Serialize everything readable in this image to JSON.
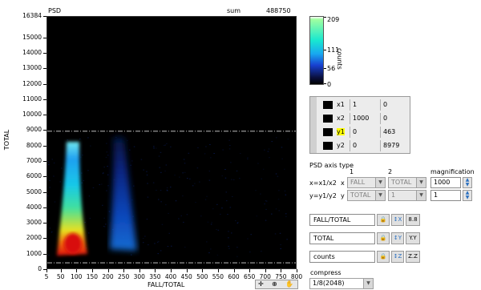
{
  "graph": {
    "title": "PSD",
    "sum_label": "sum",
    "sum_value": "488750",
    "ylabel": "TOTAL",
    "xlabel": "FALL/TOTAL",
    "x_ticks": [
      "5",
      "50",
      "100",
      "150",
      "200",
      "250",
      "300",
      "350",
      "400",
      "450",
      "500",
      "550",
      "600",
      "650",
      "700",
      "750",
      "800"
    ],
    "y_ticks": [
      "0",
      "1000",
      "2000",
      "3000",
      "4000",
      "5000",
      "6000",
      "7000",
      "8000",
      "9000",
      "10000",
      "11000",
      "12000",
      "13000",
      "14000",
      "15000",
      "16384"
    ]
  },
  "colorscale": {
    "label": "counts",
    "ticks": [
      "209",
      "111",
      "56",
      "0"
    ]
  },
  "cursors": [
    {
      "name": "x1",
      "x": "1",
      "y": "0"
    },
    {
      "name": "x2",
      "x": "1000",
      "y": "0"
    },
    {
      "name": "y1",
      "x": "0",
      "y": "463"
    },
    {
      "name": "y2",
      "x": "0",
      "y": "8979"
    }
  ],
  "psd_axis": {
    "title": "PSD axis type",
    "col1": "1",
    "col2": "2",
    "magnification_label": "magnification",
    "row_x": {
      "formula": "x=x1/x2",
      "axis": "x",
      "sel1": "FALL",
      "sel2": "TOTAL",
      "mag": "1000"
    },
    "row_y": {
      "formula": "y=y1/y2",
      "axis": "y",
      "sel1": "TOTAL",
      "sel2": "1",
      "mag": "1"
    }
  },
  "axis_names": {
    "x": "FALL/TOTAL",
    "y": "TOTAL",
    "z": "counts",
    "x_fmt": "8.8",
    "y_fmt": "Y.Y",
    "z_fmt": "Z.Z"
  },
  "compress": {
    "label": "compress",
    "value": "1/8(2048)"
  },
  "colors": {
    "plot_bg": "#000000",
    "accent_cursor": "#ffff00",
    "scale_top": "#ffffff",
    "scale_mid": "#14e0d0",
    "scale_low": "#1a3fd0"
  },
  "chart_data": {
    "type": "heatmap",
    "title": "PSD",
    "xlabel": "FALL/TOTAL",
    "ylabel": "TOTAL",
    "xlim": [
      5,
      800
    ],
    "ylim": [
      0,
      16384
    ],
    "z_range": [
      0,
      209
    ],
    "x_ticks": [
      5,
      50,
      100,
      150,
      200,
      250,
      300,
      350,
      400,
      450,
      500,
      550,
      600,
      650,
      700,
      750,
      800
    ],
    "y_ticks": [
      0,
      1000,
      2000,
      3000,
      4000,
      5000,
      6000,
      7000,
      8000,
      9000,
      10000,
      11000,
      12000,
      13000,
      14000,
      15000,
      16384
    ],
    "cursor_lines_y": [
      463,
      8979
    ]
  }
}
